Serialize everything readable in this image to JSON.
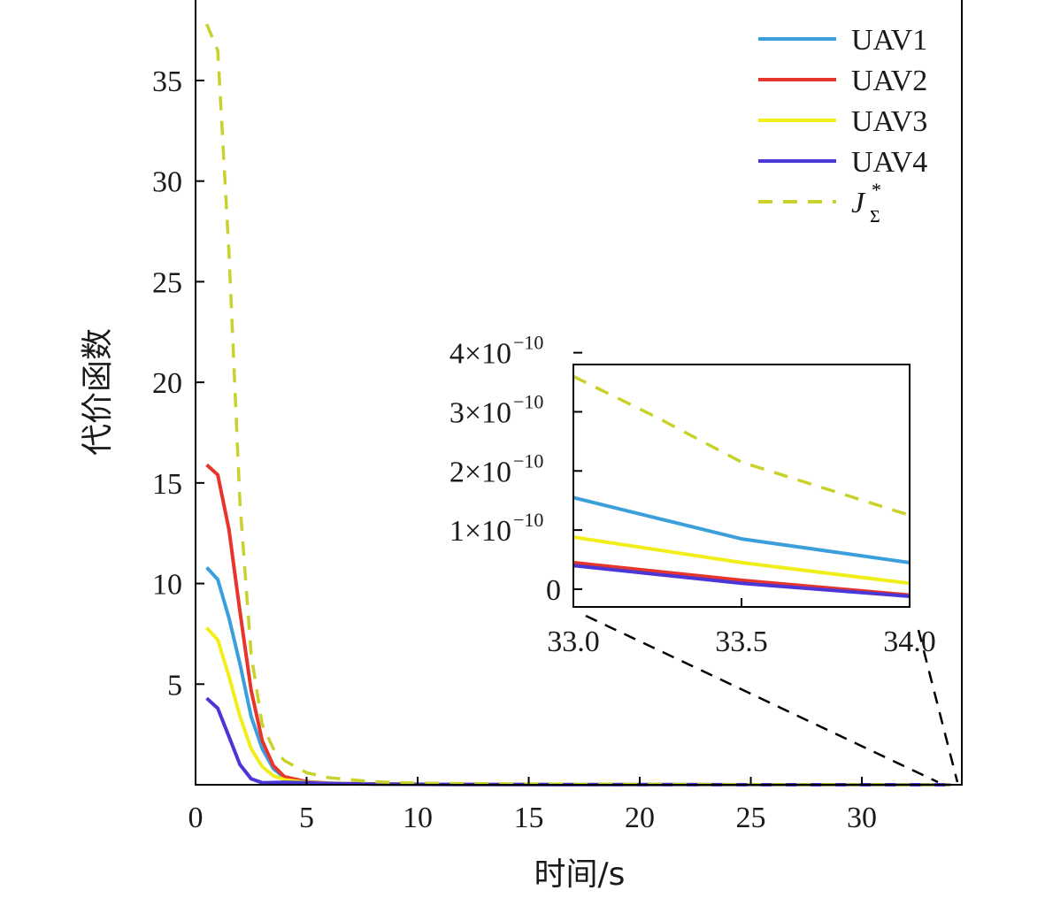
{
  "chart_data": [
    {
      "type": "line",
      "xlabel": "时间/s",
      "ylabel": "代价函数",
      "xlim": [
        0,
        34.5
      ],
      "ylim": [
        0,
        39
      ],
      "xticks": [
        0,
        5,
        10,
        15,
        20,
        25,
        30
      ],
      "xtick_labels": [
        "0",
        "5",
        "10",
        "15",
        "20",
        "25",
        "30"
      ],
      "yticks": [
        5,
        10,
        15,
        20,
        25,
        30,
        35
      ],
      "ytick_labels": [
        "5",
        "10",
        "15",
        "20",
        "25",
        "30",
        "35"
      ],
      "legend": "top-right",
      "series": [
        {
          "name": "UAV1",
          "color": "#3b9fdc",
          "dash": false,
          "x": [
            0.5,
            1,
            1.5,
            2,
            2.5,
            3,
            3.5,
            4,
            5,
            6,
            8,
            10,
            15,
            20,
            25,
            30,
            34
          ],
          "y": [
            10.8,
            10.2,
            8.3,
            6.0,
            3.4,
            1.8,
            0.8,
            0.35,
            0.15,
            0.08,
            0.04,
            0.02,
            0.01,
            0.005,
            0.002,
            0.001,
            0
          ]
        },
        {
          "name": "UAV2",
          "color": "#e8352b",
          "dash": false,
          "x": [
            0.5,
            1,
            1.5,
            2,
            2.5,
            3,
            3.5,
            4,
            5,
            6,
            8,
            10,
            15,
            20,
            25,
            30,
            34
          ],
          "y": [
            15.9,
            15.4,
            12.7,
            8.6,
            4.7,
            2.2,
            0.95,
            0.4,
            0.15,
            0.08,
            0.04,
            0.02,
            0.01,
            0.005,
            0.002,
            0.001,
            0
          ]
        },
        {
          "name": "UAV3",
          "color": "#f2ee1a",
          "dash": false,
          "x": [
            0.5,
            1,
            1.5,
            2,
            2.5,
            3,
            3.5,
            4,
            5,
            6,
            8,
            10,
            15,
            20,
            25,
            30,
            34
          ],
          "y": [
            7.8,
            7.2,
            5.4,
            3.4,
            1.8,
            0.9,
            0.45,
            0.25,
            0.12,
            0.07,
            0.04,
            0.02,
            0.01,
            0.005,
            0.002,
            0.001,
            0
          ]
        },
        {
          "name": "UAV4",
          "color": "#4b36d6",
          "dash": false,
          "x": [
            0.5,
            1,
            1.5,
            2,
            2.5,
            3,
            4,
            5,
            6,
            8,
            10,
            15,
            20,
            25,
            30,
            34
          ],
          "y": [
            4.3,
            3.8,
            2.4,
            1.0,
            0.3,
            0.1,
            0.12,
            0.1,
            0.06,
            0.03,
            0.02,
            0.01,
            0.005,
            0.002,
            0.001,
            0
          ]
        },
        {
          "name": "J_Σ^*",
          "color": "#c9d22a",
          "dash": true,
          "x": [
            0.5,
            1,
            1.5,
            2,
            2.5,
            3,
            3.5,
            4,
            5,
            6,
            8,
            10,
            15,
            20,
            25,
            30,
            34
          ],
          "y": [
            37.8,
            36.5,
            26.5,
            14.0,
            6.5,
            3.0,
            1.8,
            1.2,
            0.6,
            0.35,
            0.15,
            0.08,
            0.04,
            0.02,
            0.01,
            0.005,
            0
          ]
        }
      ]
    },
    {
      "type": "line",
      "xlim": [
        33.0,
        34.0
      ],
      "ylim": [
        -3e-11,
        3.8e-10
      ],
      "xticks": [
        33.0,
        33.5,
        34.0
      ],
      "xtick_labels": [
        "33.0",
        "33.5",
        "34.0"
      ],
      "yticks": [
        0,
        1e-10,
        2e-10,
        3e-10,
        4e-10
      ],
      "ytick_mantissas": [
        "0",
        "1",
        "2",
        "3",
        "4"
      ],
      "ytick_exponent": "−10",
      "series": [
        {
          "name": "UAV1",
          "color": "#3b9fdc",
          "dash": false,
          "x": [
            33.0,
            33.25,
            33.5,
            33.75,
            34.0
          ],
          "y": [
            1.55e-10,
            1.2e-10,
            8.5e-11,
            6.5e-11,
            4.5e-11
          ]
        },
        {
          "name": "UAV2",
          "color": "#e8352b",
          "dash": false,
          "x": [
            33.0,
            33.5,
            34.0
          ],
          "y": [
            4.5e-11,
            1.5e-11,
            -1e-11
          ]
        },
        {
          "name": "UAV3",
          "color": "#f2ee1a",
          "dash": false,
          "x": [
            33.0,
            33.5,
            34.0
          ],
          "y": [
            8.8e-11,
            4.5e-11,
            1e-11
          ]
        },
        {
          "name": "UAV4",
          "color": "#4b36d6",
          "dash": false,
          "x": [
            33.0,
            33.5,
            34.0
          ],
          "y": [
            4e-11,
            1e-11,
            -1.2e-11
          ]
        },
        {
          "name": "J_Σ^*",
          "color": "#c9d22a",
          "dash": true,
          "x": [
            33.0,
            33.25,
            33.5,
            33.75,
            34.0
          ],
          "y": [
            3.6e-10,
            2.9e-10,
            2.15e-10,
            1.7e-10,
            1.25e-10
          ]
        }
      ]
    }
  ],
  "legend": {
    "items": [
      {
        "label": "UAV1",
        "color": "#3b9fdc",
        "dash": false
      },
      {
        "label": "UAV2",
        "color": "#e8352b",
        "dash": false
      },
      {
        "label": "UAV3",
        "color": "#f2ee1a",
        "dash": false
      },
      {
        "label": "UAV4",
        "color": "#4b36d6",
        "dash": false
      },
      {
        "label_main": "J",
        "label_sub": "Σ",
        "label_sup": "*",
        "color": "#c9d22a",
        "dash": true
      }
    ]
  }
}
